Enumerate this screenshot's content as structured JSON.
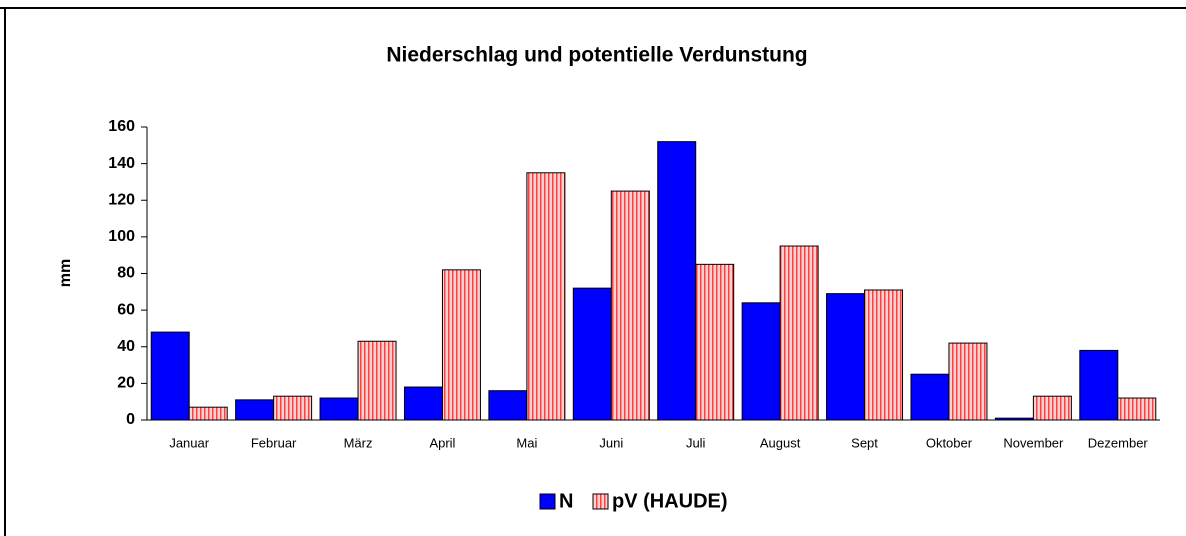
{
  "chart_data": {
    "type": "bar",
    "title": "Niederschlag und potentielle Verdunstung",
    "y_label": "mm",
    "categories": [
      "Januar",
      "Februar",
      "März",
      "April",
      "Mai",
      "Juni",
      "Juli",
      "August",
      "Sept",
      "Oktober",
      "November",
      "Dezember"
    ],
    "series": [
      {
        "name": "N",
        "color": "#0000ff",
        "values": [
          48,
          11,
          12,
          18,
          16,
          72,
          152,
          64,
          69,
          25,
          1,
          38
        ]
      },
      {
        "name": "pV (HAUDE)",
        "color": "#ffb0b0",
        "values": [
          7,
          13,
          43,
          82,
          135,
          125,
          85,
          95,
          71,
          42,
          13,
          12
        ]
      }
    ],
    "ylim": [
      0,
      160
    ],
    "yticks": [
      0,
      20,
      40,
      60,
      80,
      100,
      120,
      140,
      160
    ],
    "grid": false,
    "legend": "bottom"
  }
}
